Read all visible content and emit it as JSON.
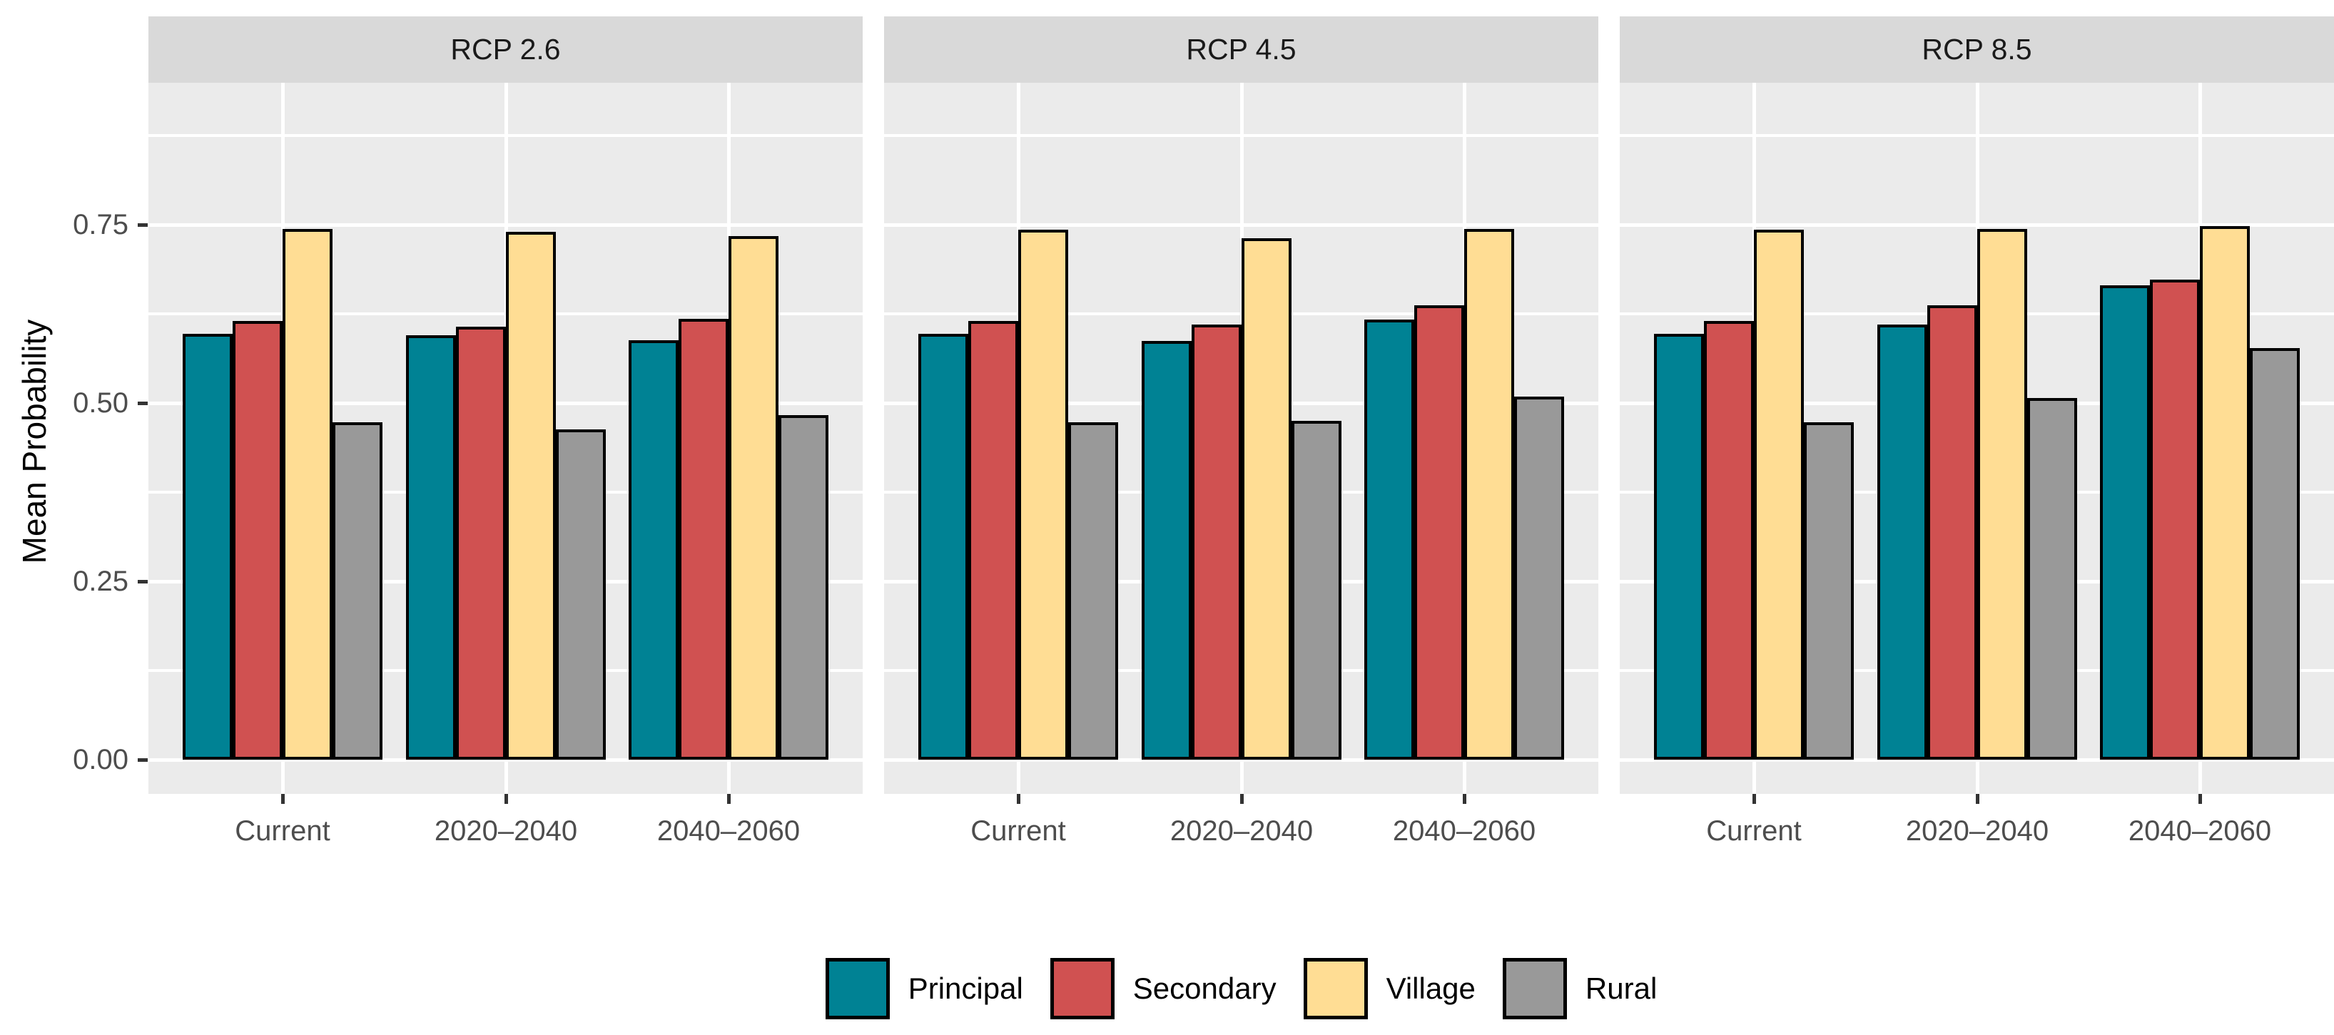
{
  "chart_data": {
    "type": "bar",
    "title": "",
    "ylabel": "Mean Probability",
    "xlabel": "",
    "x_categories": [
      "Current",
      "2020–2040",
      "2040–2060"
    ],
    "y_ticks": [
      "0.00",
      "0.25",
      "0.50",
      "0.75"
    ],
    "y_tick_values": [
      0,
      0.25,
      0.5,
      0.75
    ],
    "y_minor_tick_values": [
      0.125,
      0.375,
      0.625,
      0.875
    ],
    "ylim": [
      -0.048,
      0.955
    ],
    "grid": "white major and minor horizontal gridlines plus vertical gridlines at group centers on grey panel",
    "legend_position": "bottom-center",
    "facet_titles": [
      "RCP 2.6",
      "RCP 4.5",
      "RCP 8.5"
    ],
    "panels": [
      {
        "title": "RCP 2.6",
        "series": [
          {
            "name": "Principal",
            "values": [
              0.597,
              0.595,
              0.588
            ]
          },
          {
            "name": "Secondary",
            "values": [
              0.615,
              0.607,
              0.618
            ]
          },
          {
            "name": "Village",
            "values": [
              0.744,
              0.74,
              0.734
            ]
          },
          {
            "name": "Rural",
            "values": [
              0.473,
              0.463,
              0.483
            ]
          }
        ]
      },
      {
        "title": "RCP 4.5",
        "series": [
          {
            "name": "Principal",
            "values": [
              0.597,
              0.587,
              0.617
            ]
          },
          {
            "name": "Secondary",
            "values": [
              0.615,
              0.61,
              0.637
            ]
          },
          {
            "name": "Village",
            "values": [
              0.743,
              0.731,
              0.744
            ]
          },
          {
            "name": "Rural",
            "values": [
              0.473,
              0.475,
              0.509
            ]
          }
        ]
      },
      {
        "title": "RCP 8.5",
        "series": [
          {
            "name": "Principal",
            "values": [
              0.597,
              0.61,
              0.665
            ]
          },
          {
            "name": "Secondary",
            "values": [
              0.615,
              0.637,
              0.673
            ]
          },
          {
            "name": "Village",
            "values": [
              0.743,
              0.744,
              0.748
            ]
          },
          {
            "name": "Rural",
            "values": [
              0.473,
              0.507,
              0.577
            ]
          }
        ]
      }
    ],
    "legend": [
      {
        "label": "Principal",
        "color": "#008294"
      },
      {
        "label": "Secondary",
        "color": "#D05151"
      },
      {
        "label": "Village",
        "color": "#FFDD94"
      },
      {
        "label": "Rural",
        "color": "#999999"
      }
    ]
  },
  "colors": {
    "principal": "#008294",
    "secondary": "#D05151",
    "village": "#FFDD94",
    "rural": "#999999",
    "panel_background": "#EBEBEB",
    "facet_strip_background": "#D9D9D9",
    "gridline": "#FFFFFF",
    "tick_mark": "#333333",
    "axis_text": "#4D4D4D",
    "bar_border": "#000000"
  }
}
